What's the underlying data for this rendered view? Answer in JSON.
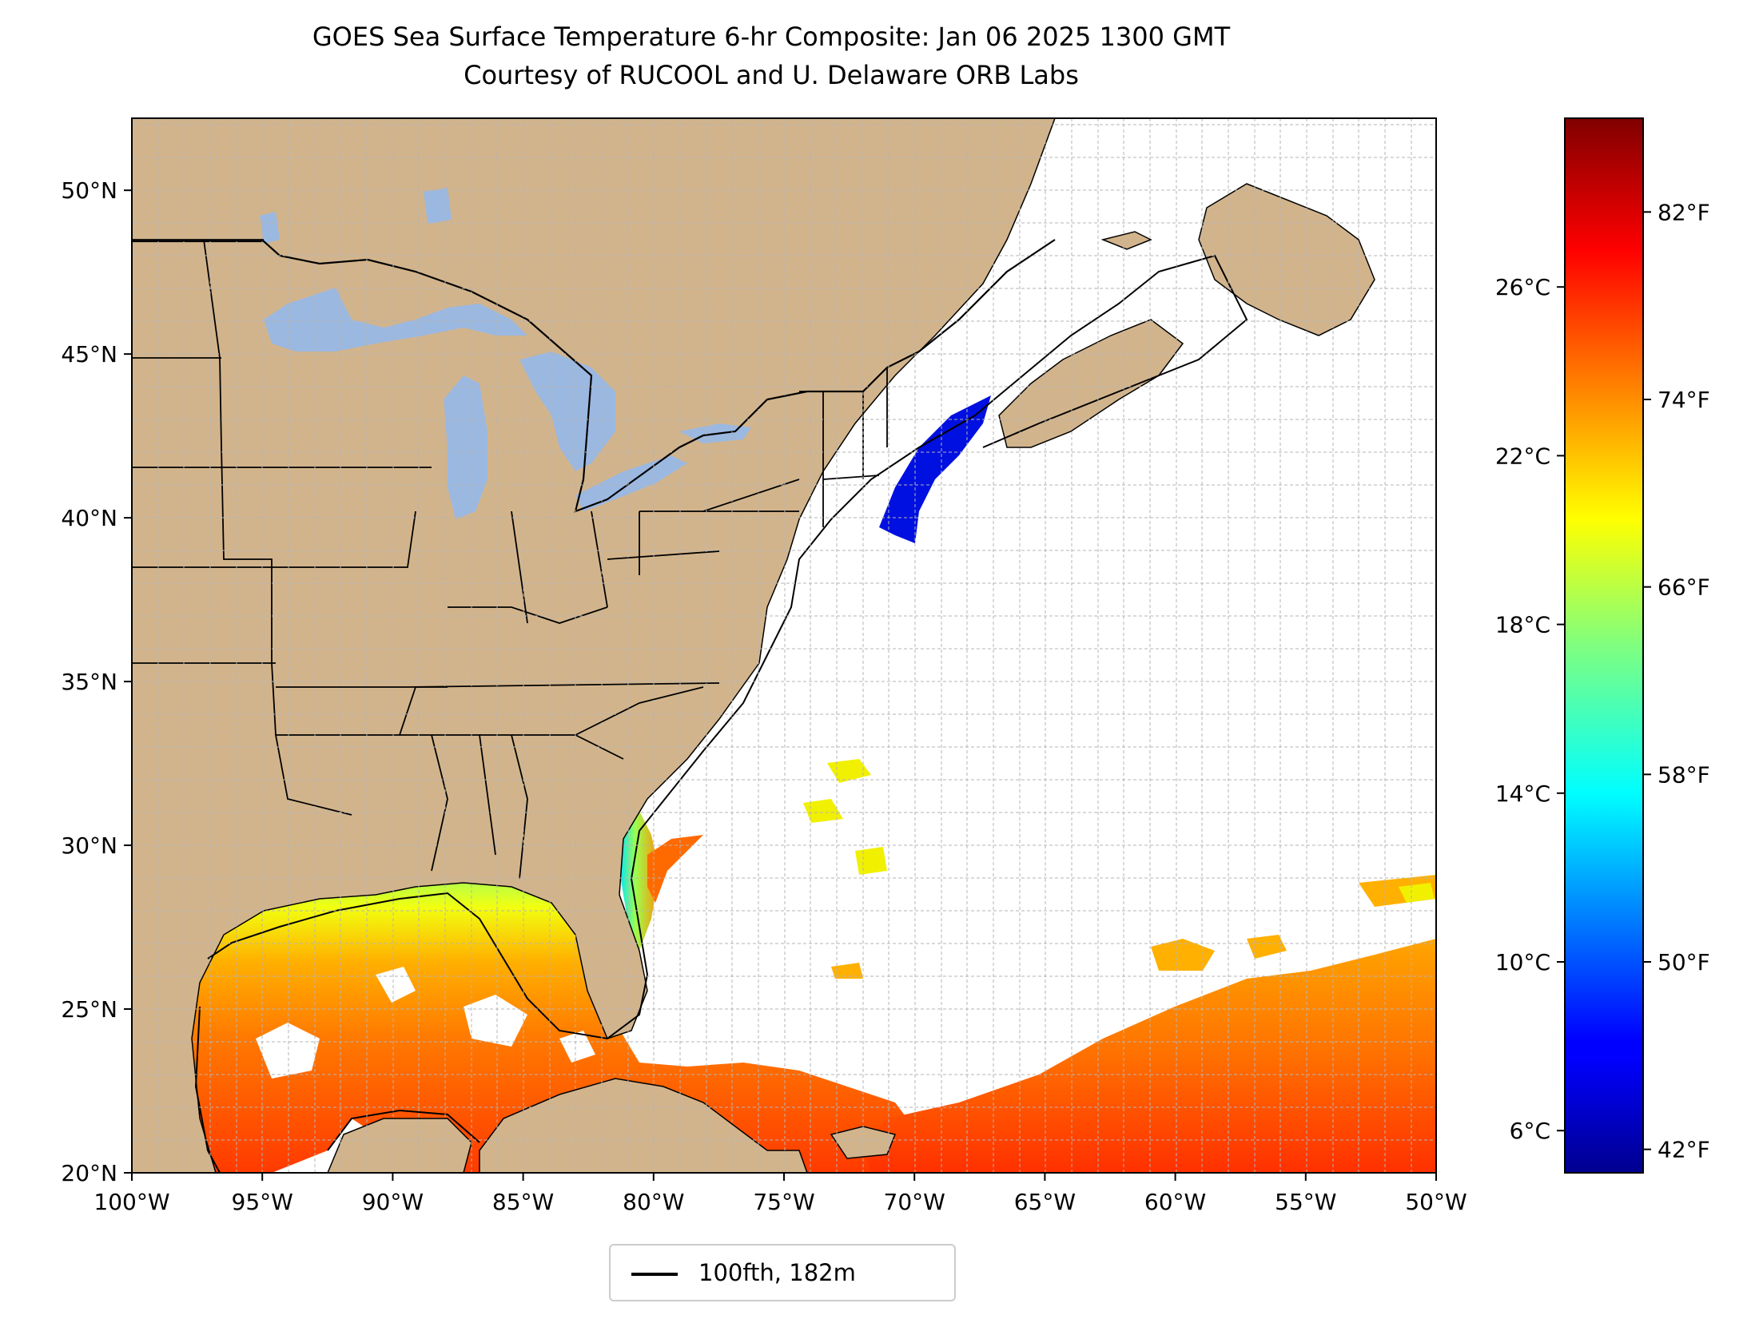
{
  "title": "GOES Sea Surface Temperature 6-hr Composite: Jan 06 2025 1300 GMT",
  "subtitle": "Courtesy of RUCOOL and U. Delaware ORB Labs",
  "map": {
    "lon_range": [
      -100,
      -50
    ],
    "lat_range": [
      20,
      52.2
    ],
    "lon_ticks": [
      -100,
      -95,
      -90,
      -85,
      -80,
      -75,
      -70,
      -65,
      -60,
      -55,
      -50
    ],
    "lon_tick_labels": [
      "100°W",
      "95°W",
      "90°W",
      "85°W",
      "80°W",
      "75°W",
      "70°W",
      "65°W",
      "60°W",
      "55°W",
      "50°W"
    ],
    "lat_ticks": [
      20,
      25,
      30,
      35,
      40,
      45,
      50
    ],
    "lat_tick_labels": [
      "20°N",
      "25°N",
      "30°N",
      "35°N",
      "40°N",
      "45°N",
      "50°N"
    ],
    "gridlines": true,
    "colors": {
      "land": "#d2b48c",
      "lakes": "#9bb8e0",
      "ocean": "#ffffff",
      "grid": "#b5b5b5",
      "coast": "#000000"
    }
  },
  "legend": {
    "label": "100fth, 182m",
    "position": "bottom-center"
  },
  "colorbar": {
    "colormap": "jet",
    "range_c": [
      5,
      30
    ],
    "celsius_ticks": [
      6,
      10,
      14,
      18,
      22,
      26
    ],
    "celsius_tick_labels": [
      "6°C",
      "10°C",
      "14°C",
      "18°C",
      "22°C",
      "26°C"
    ],
    "fahrenheit_ticks": [
      42,
      50,
      58,
      66,
      74,
      82
    ],
    "fahrenheit_tick_labels": [
      "42°F",
      "50°F",
      "58°F",
      "66°F",
      "74°F",
      "82°F"
    ]
  }
}
